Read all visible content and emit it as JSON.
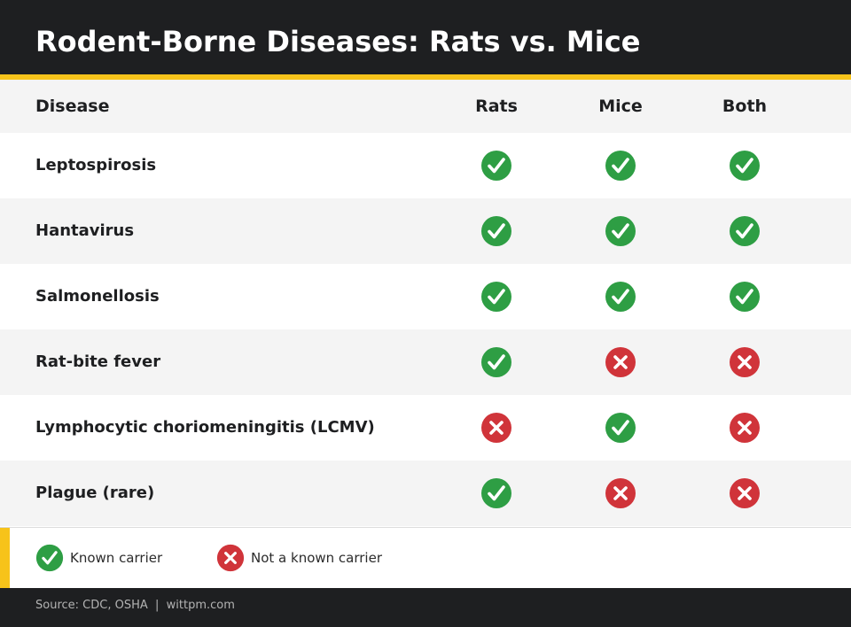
{
  "header": {
    "title": "Rodent-Borne Diseases: Rats vs. Mice"
  },
  "table": {
    "columns": {
      "disease": "Disease",
      "rats": "Rats",
      "mice": "Mice",
      "both": "Both"
    },
    "rows": [
      {
        "disease": "Leptospirosis",
        "rats": "yes",
        "mice": "yes",
        "both": "yes"
      },
      {
        "disease": "Hantavirus",
        "rats": "yes",
        "mice": "yes",
        "both": "yes"
      },
      {
        "disease": "Salmonellosis",
        "rats": "yes",
        "mice": "yes",
        "both": "yes"
      },
      {
        "disease": "Rat-bite fever",
        "rats": "yes",
        "mice": "no",
        "both": "no"
      },
      {
        "disease": "Lymphocytic choriomeningitis (LCMV)",
        "rats": "no",
        "mice": "yes",
        "both": "no"
      },
      {
        "disease": "Plague (rare)",
        "rats": "yes",
        "mice": "no",
        "both": "no"
      }
    ]
  },
  "legend": {
    "known": {
      "label": "Known carrier",
      "icon": "check-circle-icon",
      "color": "#2e9e44"
    },
    "not_known": {
      "label": "Not a known carrier",
      "icon": "x-circle-icon",
      "color": "#d0343a"
    }
  },
  "colors": {
    "header_bg": "#1e1f21",
    "accent": "#f7c31a"
  },
  "footer": {
    "source": "Source: CDC, OSHA  |  wittpm.com"
  }
}
